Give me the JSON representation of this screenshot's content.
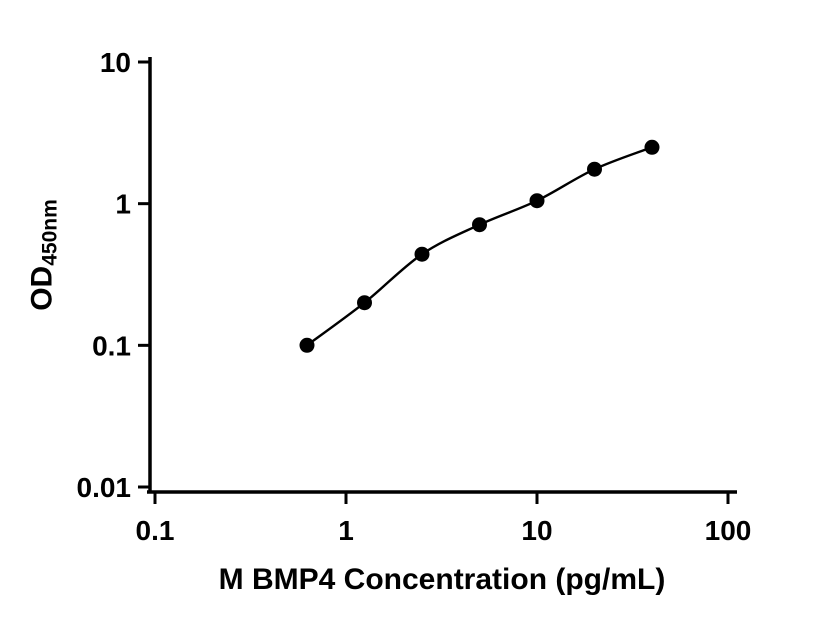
{
  "chart_data": {
    "type": "scatter",
    "title": "",
    "xlabel": "M BMP4 Concentration (pg/mL)",
    "ylabel": "OD",
    "ylabel_sub": "450nm",
    "x_scale": "log",
    "y_scale": "log",
    "xlim": [
      0.1,
      100
    ],
    "ylim": [
      0.01,
      10
    ],
    "grid": false,
    "legend": "none",
    "marker_color": "#000000",
    "line_color": "#000000",
    "x_ticks": [
      {
        "value": 0.1,
        "label": "0.1"
      },
      {
        "value": 1,
        "label": "1"
      },
      {
        "value": 10,
        "label": "10"
      },
      {
        "value": 100,
        "label": "100"
      }
    ],
    "y_ticks": [
      {
        "value": 0.01,
        "label": "0.01"
      },
      {
        "value": 0.1,
        "label": "0.1"
      },
      {
        "value": 1,
        "label": "1"
      },
      {
        "value": 10,
        "label": "10"
      }
    ],
    "points": [
      {
        "x": 0.625,
        "y": 0.1
      },
      {
        "x": 1.25,
        "y": 0.2
      },
      {
        "x": 2.5,
        "y": 0.44
      },
      {
        "x": 5,
        "y": 0.71
      },
      {
        "x": 10,
        "y": 1.05
      },
      {
        "x": 20,
        "y": 1.75
      },
      {
        "x": 40,
        "y": 2.5
      }
    ],
    "fit": "smooth curve through points (standard-curve fit)"
  }
}
